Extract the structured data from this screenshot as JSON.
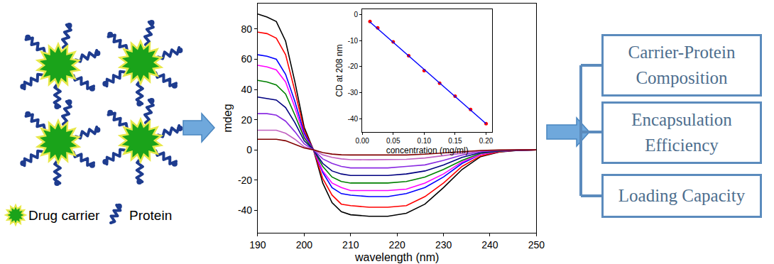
{
  "legend_items": [
    "Drug carrier",
    "Protein"
  ],
  "chart_data": [
    {
      "type": "line",
      "x_label": "wavelength (nm)",
      "y_label": "mdeg",
      "x": [
        190,
        192,
        194,
        196,
        198,
        200,
        202,
        204,
        206,
        208,
        210,
        214,
        218,
        222,
        226,
        230,
        234,
        238,
        242,
        246,
        250
      ],
      "series": [
        {
          "color": "#000000",
          "values": [
            90,
            88,
            85,
            72,
            45,
            15,
            0,
            -22,
            -35,
            -41,
            -43,
            -44,
            -44,
            -42,
            -36,
            -25,
            -13,
            -4.5,
            -1.5,
            -0.4,
            0
          ]
        },
        {
          "color": "#ff0000",
          "values": [
            78,
            77,
            74,
            63,
            39,
            13,
            0,
            -19,
            -30,
            -36,
            -37,
            -38,
            -38,
            -37,
            -31,
            -22,
            -11,
            -4,
            -1.3,
            -0.3,
            0
          ]
        },
        {
          "color": "#0000ff",
          "values": [
            63,
            62,
            60,
            50,
            32,
            11,
            0,
            -15,
            -25,
            -29,
            -30,
            -31,
            -31,
            -29,
            -25,
            -18,
            -9,
            -3,
            -1,
            -0.3,
            0
          ]
        },
        {
          "color": "#ff00ff",
          "values": [
            56,
            55,
            53,
            45,
            28,
            9,
            0,
            -14,
            -22,
            -25,
            -27,
            -27,
            -27,
            -26,
            -22,
            -16,
            -8,
            -3,
            -0.9,
            -0.2,
            0
          ]
        },
        {
          "color": "#008000",
          "values": [
            46,
            45,
            43,
            37,
            23,
            8,
            0,
            -11,
            -18,
            -21,
            -22,
            -22,
            -22,
            -21,
            -18,
            -13,
            -7,
            -2.3,
            -0.8,
            -0.2,
            0
          ]
        },
        {
          "color": "#000080",
          "values": [
            35,
            34,
            33,
            28,
            18,
            6,
            0,
            -9,
            -14,
            -16,
            -17,
            -17,
            -17,
            -16,
            -14,
            -10,
            -5,
            -1.8,
            -0.6,
            -0.2,
            0
          ]
        },
        {
          "color": "#8a2be2",
          "values": [
            24,
            24,
            23,
            19,
            12,
            4,
            0,
            -6,
            -9,
            -11,
            -12,
            -12,
            -12,
            -11,
            -10,
            -7,
            -3.5,
            -1.2,
            -0.4,
            -0.1,
            0
          ]
        },
        {
          "color": "#c060c0",
          "values": [
            13,
            13,
            13,
            11,
            7,
            2,
            0,
            -3.3,
            -5,
            -6,
            -6.5,
            -6.6,
            -6.6,
            -6.3,
            -5.4,
            -3.8,
            -2,
            -0.7,
            -0.2,
            0,
            0
          ]
        },
        {
          "color": "#800000",
          "values": [
            7,
            7,
            7,
            6,
            3.6,
            1.2,
            0,
            -1.8,
            -2.8,
            -3.3,
            -3.4,
            -3.5,
            -3.5,
            -3.4,
            -2.9,
            -2,
            -1,
            -0.4,
            -0.1,
            0,
            0
          ]
        }
      ],
      "xlim": [
        190,
        250
      ],
      "xticks": [
        190,
        200,
        210,
        220,
        230,
        240,
        250
      ],
      "ylim": [
        -55,
        97
      ],
      "yticks": [
        -40,
        -20,
        0,
        20,
        40,
        60,
        80
      ],
      "grid": false
    },
    {
      "type": "scatter",
      "x_label": "concentration (mg/ml)",
      "y_label": "CD at 208 nm",
      "series": [
        {
          "type": "scatter",
          "color": "#ff0000",
          "marker": "circle",
          "x": [
            0.0125,
            0.025,
            0.05,
            0.075,
            0.1,
            0.125,
            0.15,
            0.175,
            0.2
          ],
          "values": [
            -2.7,
            -5.1,
            -10.5,
            -15.8,
            -21.5,
            -26.3,
            -31.3,
            -36.4,
            -41.8
          ]
        },
        {
          "type": "line",
          "color": "#0000ff",
          "line_style": "solid",
          "x": [
            0.0125,
            0.2
          ],
          "values": [
            -2.9,
            -41.8
          ]
        }
      ],
      "xlim": [
        0,
        0.21
      ],
      "xticks": [
        {
          "value": 0,
          "label": "0.00"
        },
        0.05,
        {
          "value": 0.1,
          "label": "0.10"
        },
        0.15,
        {
          "value": 0.2,
          "label": "0.20"
        }
      ],
      "ylim": [
        -45,
        2
      ],
      "yticks": [
        -40,
        -30,
        -20,
        -10,
        0
      ],
      "grid": false
    }
  ],
  "outcomes": [
    "Carrier-Protein Composition",
    "Encapsulation Efficiency",
    "Loading Capacity"
  ]
}
